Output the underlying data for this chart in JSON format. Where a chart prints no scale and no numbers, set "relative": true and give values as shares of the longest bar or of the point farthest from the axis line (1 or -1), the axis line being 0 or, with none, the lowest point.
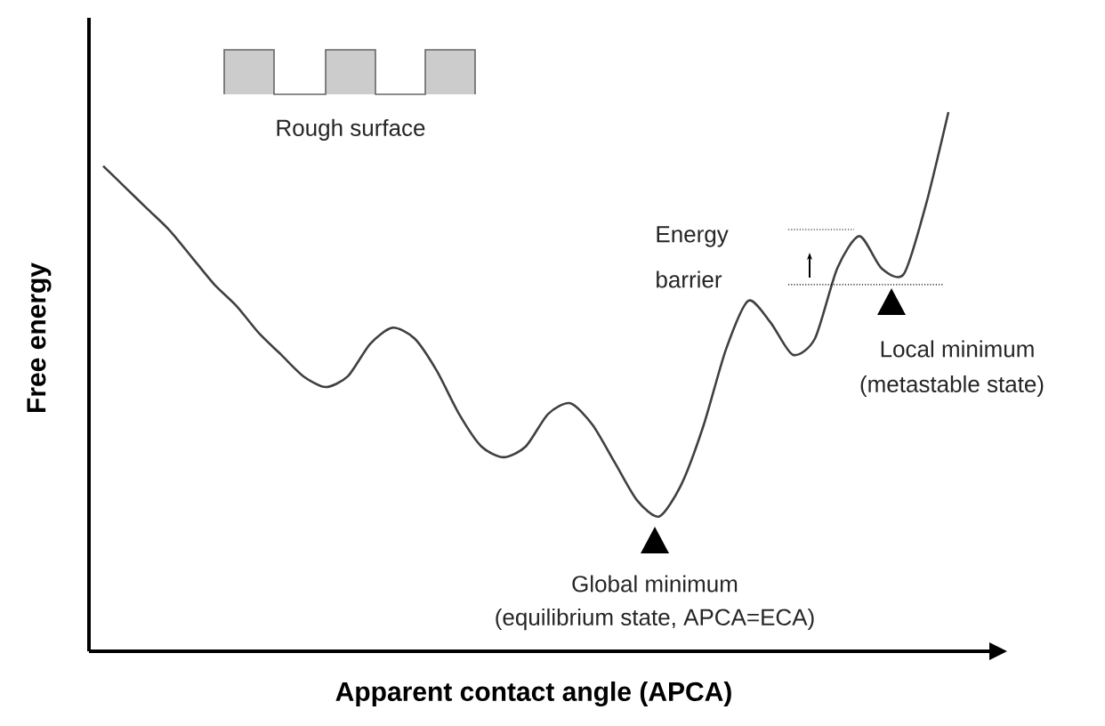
{
  "chart_data": {
    "type": "line",
    "relative": true,
    "xlabel": "Apparent contact angle (APCA)",
    "ylabel": "Free energy",
    "categories": [
      null,
      null,
      null,
      null,
      null,
      null,
      null,
      null,
      null,
      null,
      null,
      null,
      null,
      null,
      null,
      null,
      null,
      null,
      null,
      null,
      null,
      null,
      null,
      null,
      null,
      null,
      null,
      null,
      null,
      null,
      null,
      null,
      null,
      null,
      null,
      null,
      null,
      null,
      null
    ],
    "color": "#404040",
    "values": [
      0.9,
      0.86,
      0.82,
      0.78,
      0.73,
      0.68,
      0.64,
      0.59,
      0.55,
      0.51,
      0.49,
      0.51,
      0.57,
      0.6,
      0.58,
      0.52,
      0.44,
      0.38,
      0.36,
      0.38,
      0.44,
      0.46,
      0.42,
      0.35,
      0.28,
      0.25,
      0.31,
      0.42,
      0.56,
      0.65,
      0.61,
      0.55,
      0.58,
      0.71,
      0.77,
      0.71,
      0.7,
      0.83,
      1
    ],
    "ref_lines": [
      {
        "axis": "y",
        "value": 0.68,
        "line_style": "dotted",
        "color": "#000000"
      }
    ],
    "annotations": [
      "Rough surface",
      "Energy",
      "barrier",
      "Local minimum",
      "(metastable state)",
      "Global minimum",
      "(equilibrium state, APCA=ECA)"
    ]
  }
}
